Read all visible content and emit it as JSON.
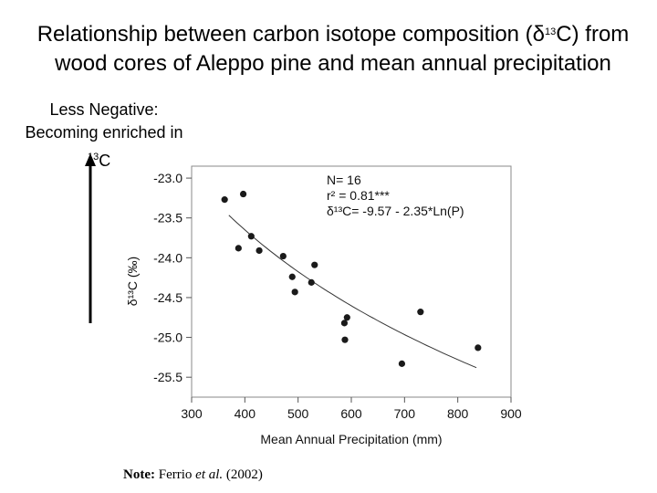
{
  "slide": {
    "title_main": "Relationship between carbon  isotope composition (δ",
    "title_sup": "13",
    "title_rest": "C) from wood cores of Aleppo pine and mean annual precipitation",
    "side_note_line1": "Less Negative:",
    "side_note_line2": "Becoming enriched in",
    "side_note_sup": "13",
    "side_note_element": "C",
    "note_label": "Note:",
    "note_author": " Ferrio",
    "note_etal": " et al.",
    "note_year": " (2002)"
  },
  "chart_data": {
    "type": "scatter",
    "xlabel": "Mean Annual Precipitation (mm)",
    "ylabel": "δ¹³C (‰)",
    "xlim": [
      300,
      900
    ],
    "ylim": [
      -25.75,
      -22.85
    ],
    "xticks": [
      300,
      400,
      500,
      600,
      700,
      800,
      900
    ],
    "yticks": [
      -23.0,
      -23.5,
      -24.0,
      -24.5,
      -25.0,
      -25.5
    ],
    "ytick_labels": [
      "-23.0",
      "-23.5",
      "-24.0",
      "-24.5",
      "-25.0",
      "-25.5"
    ],
    "annotation_lines": [
      "N= 16",
      "r² = 0.81***",
      "δ¹³C= -9.57 - 2.35*Ln(P)"
    ],
    "points": [
      {
        "x": 362,
        "y": -23.27
      },
      {
        "x": 388,
        "y": -23.88
      },
      {
        "x": 397,
        "y": -23.2
      },
      {
        "x": 412,
        "y": -23.73
      },
      {
        "x": 427,
        "y": -23.91
      },
      {
        "x": 472,
        "y": -23.98
      },
      {
        "x": 489,
        "y": -24.24
      },
      {
        "x": 494,
        "y": -24.43
      },
      {
        "x": 525,
        "y": -24.31
      },
      {
        "x": 531,
        "y": -24.09
      },
      {
        "x": 587,
        "y": -24.82
      },
      {
        "x": 592,
        "y": -24.75
      },
      {
        "x": 588,
        "y": -25.03
      },
      {
        "x": 695,
        "y": -25.33
      },
      {
        "x": 730,
        "y": -24.68
      },
      {
        "x": 838,
        "y": -25.13
      }
    ],
    "fit": {
      "a": -9.57,
      "b": -2.35,
      "x_from": 370,
      "x_to": 835
    }
  }
}
